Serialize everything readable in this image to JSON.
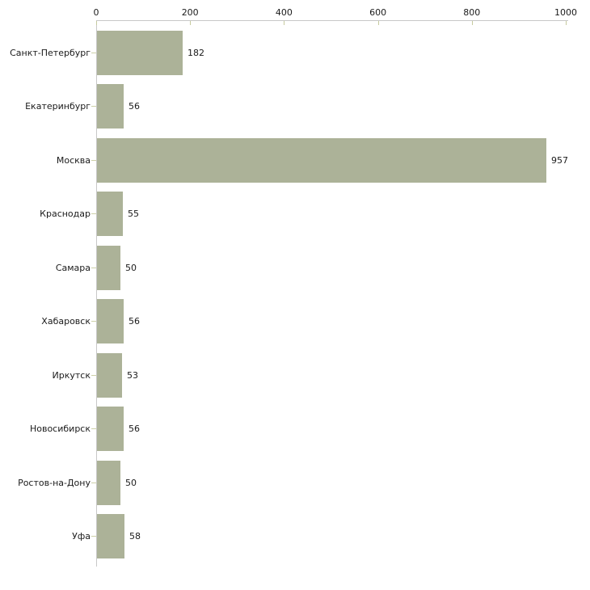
{
  "chart_data": {
    "type": "bar",
    "orientation": "horizontal",
    "title": "",
    "categories": [
      "Санкт-Петербург",
      "Екатеринбург",
      "Москва",
      "Краснодар",
      "Самара",
      "Хабаровск",
      "Иркутск",
      "Новосибирск",
      "Ростов-на-Дону",
      "Уфа"
    ],
    "values": [
      182,
      56,
      957,
      55,
      50,
      56,
      53,
      56,
      50,
      58
    ],
    "value_labels": [
      "182",
      "56",
      "957",
      "55",
      "50",
      "56",
      "53",
      "56",
      "50",
      "58"
    ],
    "x_axis": {
      "position": "top",
      "min": 0,
      "max": 1000,
      "ticks": [
        0,
        200,
        400,
        600,
        800,
        1000
      ],
      "tick_labels": [
        "0",
        "200",
        "400",
        "600",
        "800",
        "1000"
      ]
    },
    "legend": null,
    "grid": false,
    "colors": {
      "bar": "#acb298",
      "axis_line": "#c8c8c8",
      "x_tick_mark": "#c6ca9e",
      "category_tick_mark": "#cdd0a8",
      "text": "#1a1a1a",
      "background": "#ffffff"
    }
  }
}
